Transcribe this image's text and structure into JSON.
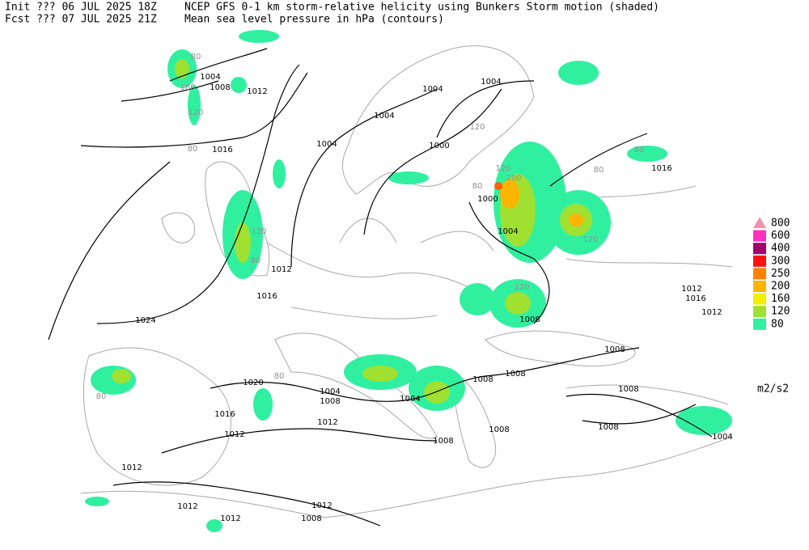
{
  "header": {
    "init": "Init  ??? 06 JUL 2025 18Z",
    "fcst": "Fcst ??? 07 JUL 2025 21Z",
    "title": "NCEP GFS 0-1 km storm-relative helicity using Bunkers Storm motion (shaded)",
    "subtitle": "Mean sea level pressure in hPa (contours)"
  },
  "legend": {
    "unit": "m2/s2",
    "levels": [
      {
        "value": 800,
        "color": "#f090b0"
      },
      {
        "value": 600,
        "color": "#ff30c0"
      },
      {
        "value": 400,
        "color": "#a00070"
      },
      {
        "value": 300,
        "color": "#ff1010"
      },
      {
        "value": 250,
        "color": "#ff8000"
      },
      {
        "value": 200,
        "color": "#ffb400"
      },
      {
        "value": 160,
        "color": "#f0f000"
      },
      {
        "value": 120,
        "color": "#a0e030"
      },
      {
        "value": 80,
        "color": "#30f0a0"
      }
    ]
  },
  "isobar_labels": [
    "1004",
    "1008",
    "1012",
    "1004",
    "1004",
    "1004",
    "1004",
    "1000",
    "1016",
    "1016",
    "1000",
    "1004",
    "1012",
    "1016",
    "1024",
    "1008",
    "1012",
    "1016",
    "1012",
    "1008",
    "1020",
    "1004",
    "1008",
    "1008",
    "1008",
    "1004",
    "1008",
    "1016",
    "1012",
    "1012",
    "1008",
    "1008",
    "1008",
    "1004",
    "1012",
    "1012",
    "1012",
    "1012",
    "1008"
  ],
  "shade_labels": [
    "80",
    "160",
    "120",
    "80",
    "120",
    "80",
    "120",
    "200",
    "80",
    "120",
    "120",
    "120",
    "80",
    "80",
    "80",
    "80"
  ]
}
